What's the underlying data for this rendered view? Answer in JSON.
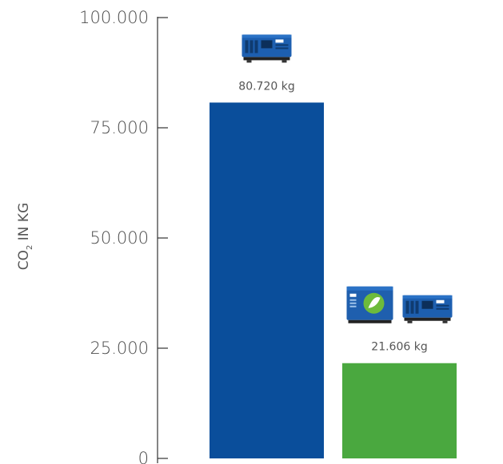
{
  "chart_data": {
    "type": "bar",
    "categories": [
      "",
      ""
    ],
    "values": [
      80720,
      21606
    ],
    "value_labels": [
      "80.720 kg",
      "21.606 kg"
    ],
    "colors": [
      "#0a4e9b",
      "#4aa83f"
    ],
    "title": "",
    "xlabel": "",
    "ylabel": {
      "prefix": "CO",
      "subscript": "2",
      "suffix": " IN KG"
    },
    "ylim": [
      0,
      100000
    ],
    "yticks": [
      0,
      25000,
      50000,
      75000,
      100000
    ],
    "ytick_labels": [
      "0",
      "25.000",
      "50.000",
      "75.000",
      "100.000"
    ],
    "grid": false,
    "legend": "none",
    "icons": [
      [
        "generator-icon"
      ],
      [
        "hybrid-battery-icon",
        "generator-icon"
      ]
    ]
  }
}
